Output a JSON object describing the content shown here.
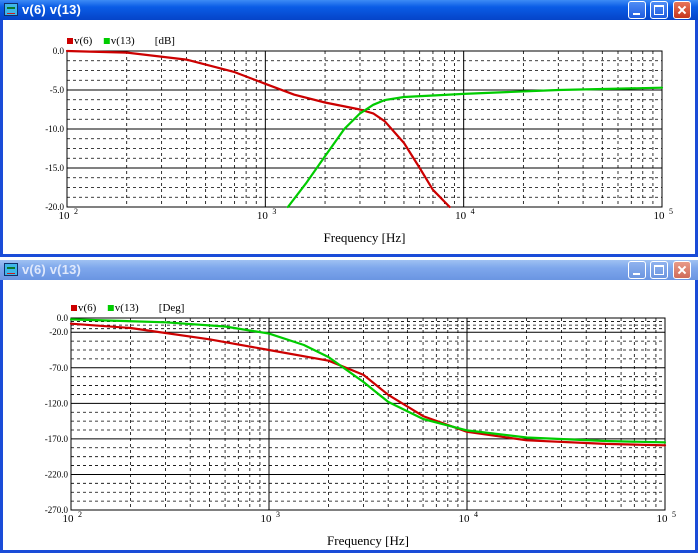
{
  "windows": [
    {
      "title": "v(6) v(13)",
      "active": true,
      "chart_data": {
        "type": "line",
        "xscale": "log",
        "xlabel": "Frequency [Hz]",
        "xlim": [
          100,
          100000
        ],
        "x_tick_labels": [
          {
            "value": 100,
            "base": "10",
            "exp": "2"
          },
          {
            "value": 1000,
            "base": "10",
            "exp": "3"
          },
          {
            "value": 10000,
            "base": "10",
            "exp": "4"
          },
          {
            "value": 100000,
            "base": "10",
            "exp": "5"
          }
        ],
        "unit_label": "[dB]",
        "ylim": [
          -20,
          0
        ],
        "y_ticks": [
          0,
          -5,
          -10,
          -15,
          -20
        ],
        "y_tick_labels": [
          "0.0",
          "-5.0",
          "-10.0",
          "-15.0",
          "-20.0"
        ],
        "grid": true,
        "legend_position": "top-left",
        "series": [
          {
            "name": "v(6)",
            "color": "#cc0000",
            "x": [
              100,
              200,
              400,
              700,
              1000,
              1400,
              2000,
              3000,
              3500,
              4000,
              5000,
              6000,
              7000,
              8500
            ],
            "y": [
              0,
              -0.2,
              -1.1,
              -2.7,
              -4.2,
              -5.6,
              -6.6,
              -7.5,
              -8.0,
              -9.0,
              -11.8,
              -15.0,
              -17.8,
              -20.0
            ]
          },
          {
            "name": "v(13)",
            "color": "#00cc00",
            "x": [
              1300,
              1600,
              2000,
              2500,
              3000,
              3500,
              4000,
              5000,
              7000,
              10000,
              30000,
              100000
            ],
            "y": [
              -20.0,
              -17.0,
              -13.5,
              -10.0,
              -8.0,
              -6.9,
              -6.3,
              -5.9,
              -5.7,
              -5.5,
              -5.0,
              -4.7
            ]
          }
        ]
      }
    },
    {
      "title": "v(6) v(13)",
      "active": false,
      "chart_data": {
        "type": "line",
        "xscale": "log",
        "xlabel": "Frequency [Hz]",
        "xlim": [
          100,
          100000
        ],
        "x_tick_labels": [
          {
            "value": 100,
            "base": "10",
            "exp": "2"
          },
          {
            "value": 1000,
            "base": "10",
            "exp": "3"
          },
          {
            "value": 10000,
            "base": "10",
            "exp": "4"
          },
          {
            "value": 100000,
            "base": "10",
            "exp": "5"
          }
        ],
        "unit_label": "[Deg]",
        "ylim": [
          -270,
          0
        ],
        "y_ticks": [
          0,
          -20,
          -70,
          -120,
          -170,
          -220,
          -270
        ],
        "y_tick_labels": [
          "0.0",
          "-20.0",
          "-70.0",
          "-120.0",
          "-170.0",
          "-220.0",
          "-270.0"
        ],
        "grid": true,
        "legend_position": "top-left",
        "series": [
          {
            "name": "v(6)",
            "color": "#cc0000",
            "x": [
              100,
              200,
              500,
              1000,
              2000,
              3000,
              4000,
              6000,
              10000,
              20000,
              50000,
              100000
            ],
            "y": [
              -8,
              -14,
              -30,
              -45,
              -60,
              -80,
              -108,
              -138,
              -160,
              -172,
              -177,
              -179
            ]
          },
          {
            "name": "v(13)",
            "color": "#00cc00",
            "x": [
              100,
              300,
              600,
              1000,
              1500,
              2000,
              3000,
              4000,
              6000,
              10000,
              20000,
              50000,
              100000
            ],
            "y": [
              -2,
              -6,
              -12,
              -22,
              -38,
              -55,
              -90,
              -118,
              -142,
              -158,
              -168,
              -173,
              -175
            ]
          }
        ]
      }
    }
  ]
}
